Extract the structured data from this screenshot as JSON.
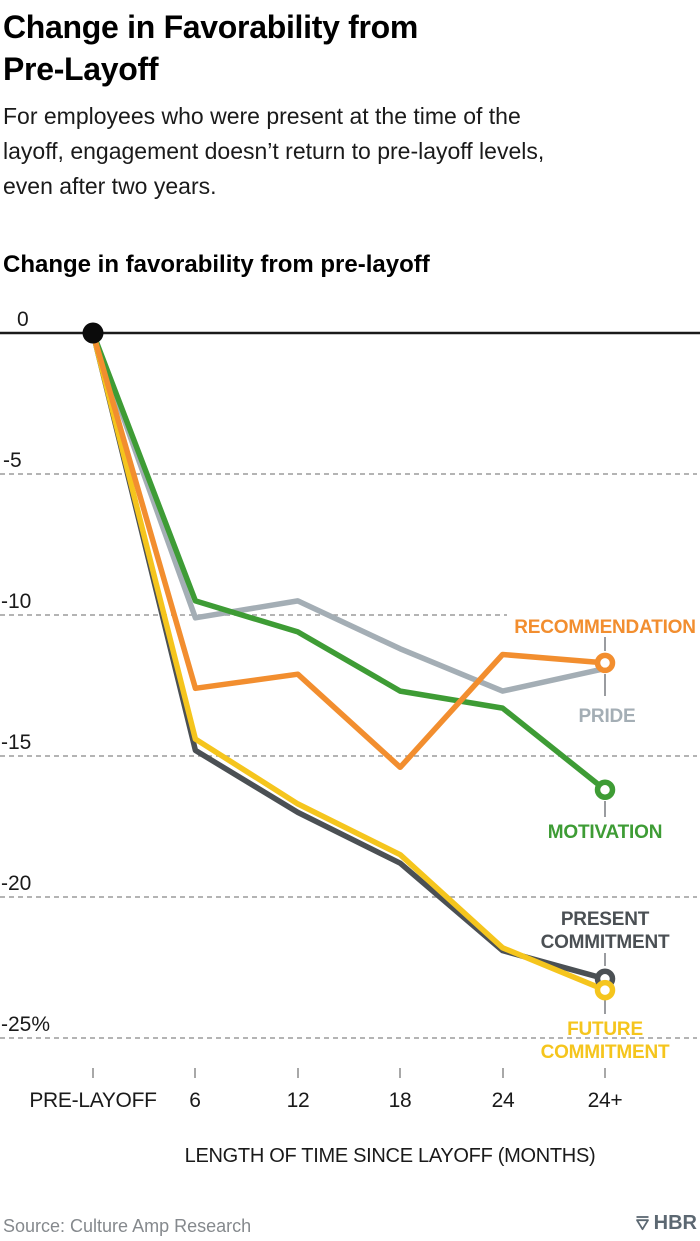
{
  "header": {
    "title_lines": [
      "Change in Favorability from",
      "Pre-Layoff"
    ],
    "subtitle_lines": [
      "For employees who were present at the time of the",
      "layoff, engagement doesn’t return to pre-layoff levels,",
      "even after two years."
    ]
  },
  "chart_data": {
    "type": "line",
    "title": "Change in favorability from pre-layoff",
    "xlabel": "LENGTH OF TIME SINCE LAYOFF (MONTHS)",
    "categories": [
      "PRE-LAYOFF",
      "6",
      "12",
      "18",
      "24",
      "24+"
    ],
    "ytick_labels": [
      "0",
      "-5",
      "-10",
      "-15",
      "-20",
      "-25%"
    ],
    "ytick_values": [
      0,
      -5,
      -10,
      -15,
      -20,
      -25
    ],
    "ylim": [
      -27,
      0
    ],
    "grid": "horizontal-dashed",
    "legend_position": "end-of-line-labels",
    "start_point": {
      "category": "PRE-LAYOFF",
      "value": 0,
      "marker": "solid-black-dot"
    },
    "series": [
      {
        "id": "recommendation",
        "name": "RECOMMENDATION",
        "label_lines": [
          "RECOMMENDATION"
        ],
        "color": "#F28E2F",
        "end_marker": true,
        "values": [
          0,
          -12.6,
          -12.1,
          -15.4,
          -11.4,
          -11.7
        ]
      },
      {
        "id": "pride",
        "name": "PRIDE",
        "label_lines": [
          "PRIDE"
        ],
        "color": "#A4AEB5",
        "end_marker": false,
        "values": [
          0,
          -10.1,
          -9.5,
          -11.2,
          -12.7,
          -11.9
        ]
      },
      {
        "id": "motivation",
        "name": "MOTIVATION",
        "label_lines": [
          "MOTIVATION"
        ],
        "color": "#3E9C35",
        "end_marker": true,
        "values": [
          0,
          -9.5,
          -10.6,
          -12.7,
          -13.3,
          -16.2
        ]
      },
      {
        "id": "present_commitment",
        "name": "PRESENT COMMITMENT",
        "label_lines": [
          "PRESENT",
          "COMMITMENT"
        ],
        "color": "#4B5054",
        "end_marker": true,
        "values": [
          0,
          -14.8,
          -17.0,
          -18.8,
          -21.9,
          -22.9
        ]
      },
      {
        "id": "future_commitment",
        "name": "FUTURE COMMITMENT",
        "label_lines": [
          "FUTURE",
          "COMMITMENT"
        ],
        "color": "#F5C51D",
        "end_marker": true,
        "values": [
          0,
          -14.4,
          -16.7,
          -18.5,
          -21.8,
          -23.3
        ]
      }
    ]
  },
  "footer": {
    "source": "Source: Culture Amp Research",
    "brand": "HBR"
  }
}
